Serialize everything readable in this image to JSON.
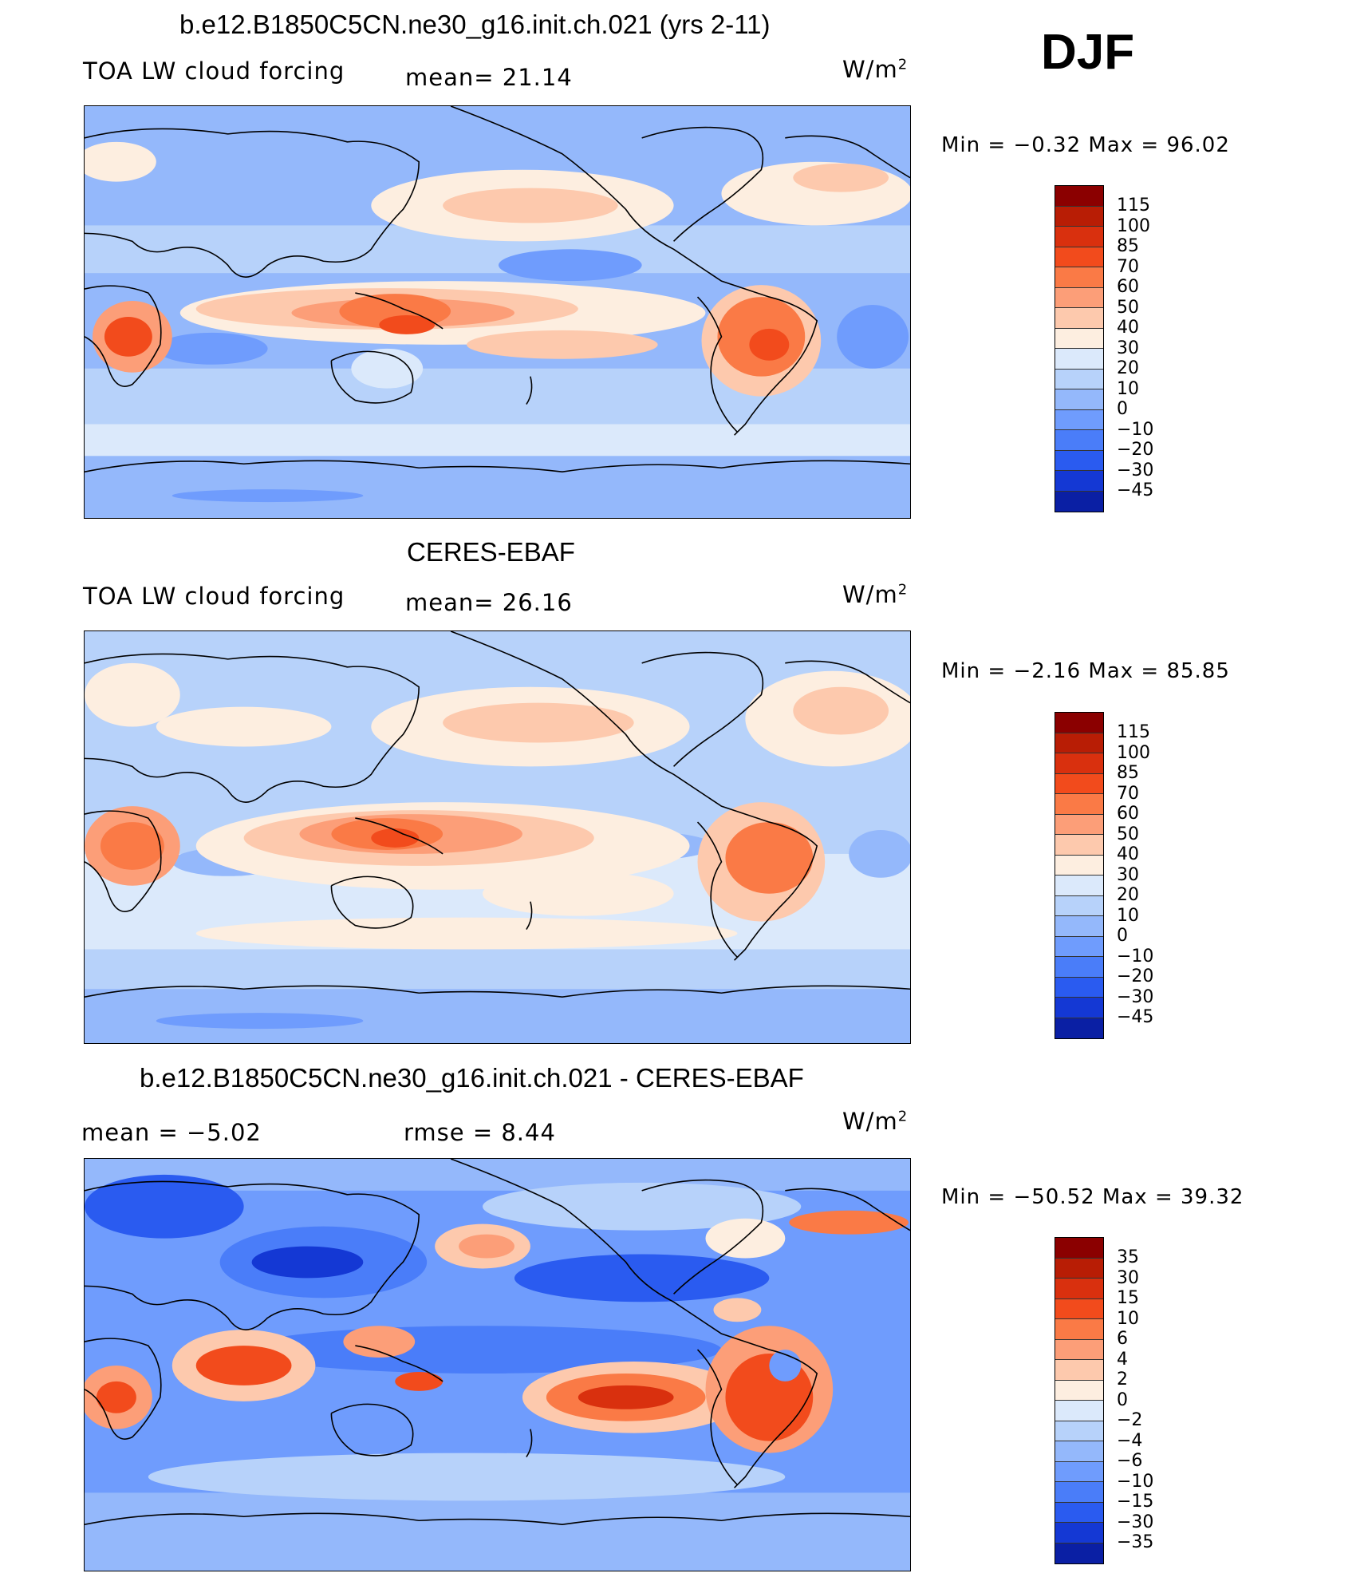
{
  "season": "DJF",
  "units_base": "W/m",
  "units_exp": "2",
  "panels": [
    {
      "title": "b.e12.B1850C5CN.ne30_g16.init.ch.021 (yrs 2-11)",
      "left_label": "TOA LW cloud forcing",
      "center_label": "mean=  21.14",
      "minmax": "Min  =    −0.32  Max  =    96.02",
      "colorbar": {
        "levels": [
          "115",
          "100",
          "85",
          "70",
          "60",
          "50",
          "40",
          "30",
          "20",
          "10",
          "0",
          "−10",
          "−20",
          "−30",
          "−45"
        ],
        "colors": [
          "#8b0000",
          "#b81d05",
          "#d9300e",
          "#f24b1c",
          "#fa7a46",
          "#fc9e78",
          "#fdc9ad",
          "#fdeee0",
          "#dbe9fb",
          "#b7d2fa",
          "#94b8fb",
          "#6f9cfd",
          "#4a7df9",
          "#2a5bf0",
          "#1438d4",
          "#0a1fa4",
          "#000088"
        ]
      }
    },
    {
      "title": "CERES-EBAF",
      "left_label": "TOA LW cloud forcing",
      "center_label": "mean=  26.16",
      "minmax": "Min  =    −2.16  Max  =    85.85",
      "colorbar": {
        "levels": [
          "115",
          "100",
          "85",
          "70",
          "60",
          "50",
          "40",
          "30",
          "20",
          "10",
          "0",
          "−10",
          "−20",
          "−30",
          "−45"
        ],
        "colors": [
          "#8b0000",
          "#b81d05",
          "#d9300e",
          "#f24b1c",
          "#fa7a46",
          "#fc9e78",
          "#fdc9ad",
          "#fdeee0",
          "#dbe9fb",
          "#b7d2fa",
          "#94b8fb",
          "#6f9cfd",
          "#4a7df9",
          "#2a5bf0",
          "#1438d4",
          "#0a1fa4",
          "#000088"
        ]
      }
    },
    {
      "title": "b.e12.B1850C5CN.ne30_g16.init.ch.021 - CERES-EBAF",
      "left_label": "mean  =    −5.02",
      "center_label": "rmse  =     8.44",
      "minmax": "Min  =  −50.52  Max  =    39.32",
      "colorbar": {
        "levels": [
          "35",
          "30",
          "15",
          "10",
          "6",
          "4",
          "2",
          "0",
          "−2",
          "−4",
          "−6",
          "−10",
          "−15",
          "−30",
          "−35"
        ],
        "colors": [
          "#8b0000",
          "#b81d05",
          "#d9300e",
          "#f24b1c",
          "#fa7a46",
          "#fc9e78",
          "#fdc9ad",
          "#fdeee0",
          "#dbe9fb",
          "#b7d2fa",
          "#94b8fb",
          "#6f9cfd",
          "#4a7df9",
          "#2a5bf0",
          "#1438d4",
          "#0a1fa4",
          "#000088"
        ]
      }
    }
  ]
}
